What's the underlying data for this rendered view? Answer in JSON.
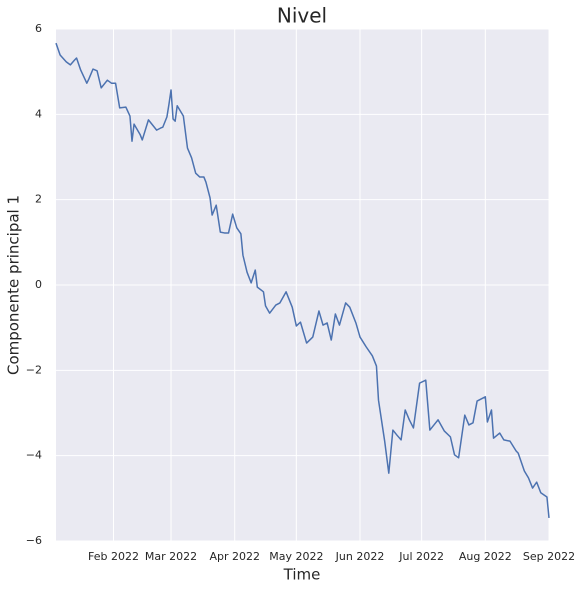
{
  "chart_data": {
    "type": "line",
    "title": "Nivel",
    "x_label": "Time",
    "y_label": "Componente principal 1",
    "grid": true,
    "xlim": [
      "2022-01-04",
      "2022-09-01"
    ],
    "ylim": [
      -6,
      6
    ],
    "xticks": [
      {
        "value": "2022-02-01",
        "label": "Feb 2022"
      },
      {
        "value": "2022-03-01",
        "label": "Mar 2022"
      },
      {
        "value": "2022-04-01",
        "label": "Apr 2022"
      },
      {
        "value": "2022-05-01",
        "label": "May 2022"
      },
      {
        "value": "2022-06-01",
        "label": "Jun 2022"
      },
      {
        "value": "2022-07-01",
        "label": "Jul 2022"
      },
      {
        "value": "2022-08-01",
        "label": "Aug 2022"
      },
      {
        "value": "2022-09-01",
        "label": "Sep 2022"
      }
    ],
    "yticks": [
      {
        "value": -6,
        "label": "−6"
      },
      {
        "value": -4,
        "label": "−4"
      },
      {
        "value": -2,
        "label": "−2"
      },
      0,
      2,
      4,
      6
    ],
    "x": [
      "2022-01-04",
      "2022-01-06",
      "2022-01-09",
      "2022-01-11",
      "2022-01-13",
      "2022-01-14",
      "2022-01-16",
      "2022-01-19",
      "2022-01-20",
      "2022-01-22",
      "2022-01-24",
      "2022-01-26",
      "2022-01-29",
      "2022-01-31",
      "2022-02-02",
      "2022-02-04",
      "2022-02-07",
      "2022-02-09",
      "2022-02-10",
      "2022-02-11",
      "2022-02-14",
      "2022-02-15",
      "2022-02-18",
      "2022-02-20",
      "2022-02-22",
      "2022-02-24",
      "2022-02-25",
      "2022-02-27",
      "2022-02-28",
      "2022-03-01",
      "2022-03-02",
      "2022-03-03",
      "2022-03-04",
      "2022-03-07",
      "2022-03-09",
      "2022-03-11",
      "2022-03-13",
      "2022-03-15",
      "2022-03-17",
      "2022-03-18",
      "2022-03-20",
      "2022-03-21",
      "2022-03-23",
      "2022-03-25",
      "2022-03-27",
      "2022-03-29",
      "2022-03-31",
      "2022-04-02",
      "2022-04-04",
      "2022-04-05",
      "2022-04-07",
      "2022-04-09",
      "2022-04-11",
      "2022-04-12",
      "2022-04-15",
      "2022-04-16",
      "2022-04-18",
      "2022-04-21",
      "2022-04-23",
      "2022-04-26",
      "2022-04-29",
      "2022-05-01",
      "2022-05-03",
      "2022-05-06",
      "2022-05-09",
      "2022-05-12",
      "2022-05-14",
      "2022-05-16",
      "2022-05-18",
      "2022-05-20",
      "2022-05-22",
      "2022-05-25",
      "2022-05-27",
      "2022-05-30",
      "2022-06-01",
      "2022-06-04",
      "2022-06-07",
      "2022-06-09",
      "2022-06-10",
      "2022-06-13",
      "2022-06-15",
      "2022-06-17",
      "2022-06-19",
      "2022-06-21",
      "2022-06-23",
      "2022-06-25",
      "2022-06-27",
      "2022-06-30",
      "2022-07-03",
      "2022-07-05",
      "2022-07-09",
      "2022-07-12",
      "2022-07-15",
      "2022-07-17",
      "2022-07-19",
      "2022-07-22",
      "2022-07-24",
      "2022-07-26",
      "2022-07-28",
      "2022-08-01",
      "2022-08-02",
      "2022-08-04",
      "2022-08-05",
      "2022-08-08",
      "2022-08-10",
      "2022-08-13",
      "2022-08-16",
      "2022-08-17",
      "2022-08-20",
      "2022-08-22",
      "2022-08-24",
      "2022-08-26",
      "2022-08-28",
      "2022-08-31",
      "2022-09-01"
    ],
    "series": [
      {
        "color": "#4c72b0",
        "values": [
          5.67,
          5.39,
          5.23,
          5.16,
          5.27,
          5.32,
          5.04,
          4.73,
          4.83,
          5.06,
          5.02,
          4.62,
          4.8,
          4.73,
          4.73,
          4.15,
          4.17,
          3.96,
          3.37,
          3.77,
          3.52,
          3.4,
          3.87,
          3.75,
          3.63,
          3.68,
          3.7,
          3.94,
          4.24,
          4.57,
          3.89,
          3.84,
          4.2,
          3.96,
          3.21,
          2.98,
          2.62,
          2.53,
          2.53,
          2.41,
          2.04,
          1.64,
          1.87,
          1.24,
          1.22,
          1.22,
          1.66,
          1.34,
          1.2,
          0.7,
          0.3,
          0.05,
          0.35,
          -0.05,
          -0.16,
          -0.49,
          -0.66,
          -0.47,
          -0.42,
          -0.16,
          -0.52,
          -0.96,
          -0.87,
          -1.36,
          -1.22,
          -0.61,
          -0.94,
          -0.89,
          -1.29,
          -0.68,
          -0.94,
          -0.42,
          -0.52,
          -0.89,
          -1.22,
          -1.45,
          -1.66,
          -1.9,
          -2.7,
          -3.66,
          -4.41,
          -3.4,
          -3.52,
          -3.63,
          -2.93,
          -3.16,
          -3.35,
          -2.3,
          -2.23,
          -3.4,
          -3.16,
          -3.42,
          -3.56,
          -3.98,
          -4.05,
          -3.05,
          -3.28,
          -3.23,
          -2.72,
          -2.62,
          -3.21,
          -2.93,
          -3.59,
          -3.47,
          -3.63,
          -3.66,
          -3.89,
          -3.94,
          -4.36,
          -4.52,
          -4.76,
          -4.62,
          -4.87,
          -4.97,
          -5.46
        ]
      }
    ]
  }
}
